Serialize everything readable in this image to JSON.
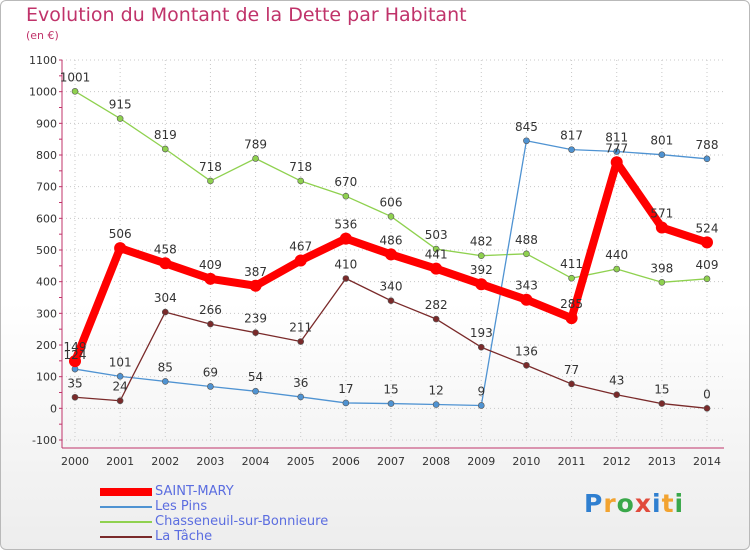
{
  "title": "Evolution du Montant de la Dette par Habitant",
  "subtitle": "(en €)",
  "logo": {
    "letters": [
      "P",
      "r",
      "o",
      "x",
      "i",
      "t",
      "i"
    ],
    "colors": [
      "#2f7fd0",
      "#f2a330",
      "#3aa84a",
      "#e14b3c",
      "#2f7fd0",
      "#f2a330",
      "#3aa84a"
    ]
  },
  "chart_data": {
    "type": "line",
    "x": [
      "2000",
      "2001",
      "2002",
      "2003",
      "2004",
      "2005",
      "2006",
      "2007",
      "2008",
      "2009",
      "2010",
      "2011",
      "2012",
      "2013",
      "2014"
    ],
    "ylim": [
      -100,
      1100
    ],
    "yticks": [
      "-100",
      "0",
      "100",
      "200",
      "300",
      "400",
      "500",
      "600",
      "700",
      "800",
      "900",
      "1000",
      "1100"
    ],
    "grid": true,
    "legend_position": "bottom-left",
    "series": [
      {
        "name": "Chasseneuil-sur-Bonnieure",
        "color": "#8fd14f",
        "values": [
          1001,
          915,
          819,
          718,
          789,
          718,
          670,
          606,
          503,
          482,
          488,
          411,
          440,
          398,
          409
        ]
      },
      {
        "name": "Les Pins",
        "color": "#4f93d2",
        "values": [
          124,
          101,
          85,
          69,
          54,
          36,
          17,
          15,
          12,
          9,
          845,
          817,
          811,
          801,
          788
        ]
      },
      {
        "name": "La Tâche",
        "color": "#7a2a2a",
        "values": [
          35,
          24,
          304,
          266,
          239,
          211,
          410,
          340,
          282,
          193,
          136,
          77,
          43,
          15,
          0
        ]
      },
      {
        "name": "SAINT-MARY",
        "color": "#ff0000",
        "values": [
          149,
          506,
          458,
          409,
          387,
          467,
          536,
          486,
          441,
          392,
          343,
          285,
          777,
          571,
          524
        ]
      }
    ],
    "data_labels": [
      {
        "series": "Chasseneuil-sur-Bonnieure",
        "labels": [
          "1001",
          "915",
          "819",
          "718",
          "789",
          "718",
          "670",
          "606",
          "503",
          "482",
          "488",
          "411",
          "440",
          "398",
          "409"
        ]
      },
      {
        "series": "Les Pins",
        "labels": [
          "124",
          "101",
          "85",
          "69",
          "54",
          "36",
          "17",
          "15",
          "12",
          "9",
          "845",
          "817",
          "811",
          "801",
          "788"
        ]
      },
      {
        "series": "La Tâche",
        "labels": [
          "35",
          "24",
          "304",
          "266",
          "239",
          "211",
          "410",
          "340",
          "282",
          "193",
          "136",
          "77",
          "43",
          "15",
          "0"
        ]
      },
      {
        "series": "SAINT-MARY",
        "labels": [
          "149",
          "506",
          "458",
          "409",
          "387",
          "467",
          "536",
          "486",
          "441",
          "392",
          "343",
          "285",
          "777",
          "571",
          "524"
        ]
      }
    ],
    "legend": [
      "SAINT-MARY",
      "Les Pins",
      "Chasseneuil-sur-Bonnieure",
      "La Tâche"
    ]
  }
}
